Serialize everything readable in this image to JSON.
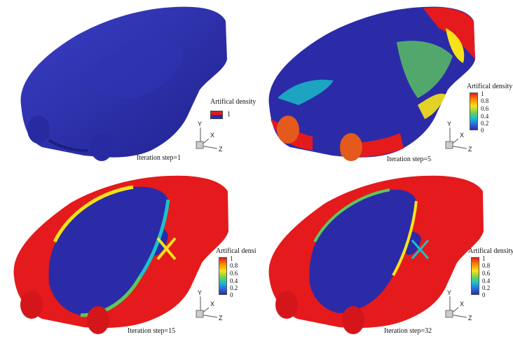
{
  "panels": [
    {
      "step_label": "Iteration step=1",
      "legend_title": "Artifical density",
      "legend_type": "single",
      "legend_values": [
        "1"
      ],
      "pattern": "uniform"
    },
    {
      "step_label": "Iteration step=5",
      "legend_title": "Artifical density",
      "legend_type": "colorbar",
      "legend_values": [
        "1",
        "0.8",
        "0.6",
        "0.4",
        "0.2",
        "0"
      ],
      "pattern": "early"
    },
    {
      "step_label": "Iteration step=15",
      "legend_title": "Artifical density",
      "legend_type": "colorbar",
      "legend_values": [
        "1",
        "0.8",
        "0.6",
        "0.4",
        "0.2",
        "0"
      ],
      "pattern": "mid"
    },
    {
      "step_label": "Iteration step=32",
      "legend_title": "Artifical density",
      "legend_type": "colorbar",
      "legend_values": [
        "1",
        "0.8",
        "0.6",
        "0.4",
        "0.2",
        "0"
      ],
      "pattern": "final"
    }
  ],
  "axis_labels": {
    "y": "Y",
    "x": "X",
    "z": "Z"
  },
  "colors": {
    "low": "#2b2ba8",
    "high": "#e41a1c",
    "mid_green": "#5cc85c",
    "mid_yellow": "#f7e31a",
    "mid_cyan": "#19c3c8"
  }
}
